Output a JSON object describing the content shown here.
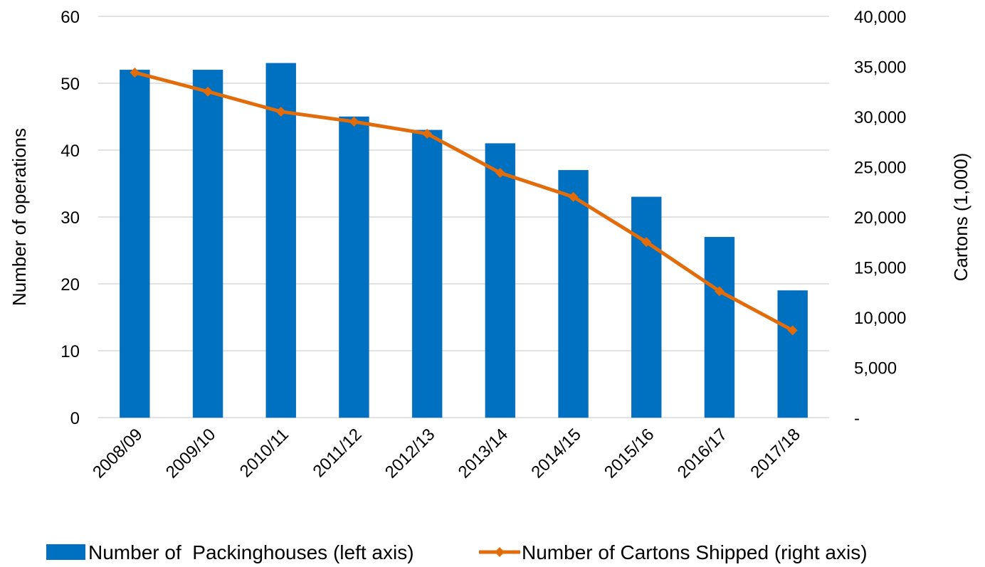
{
  "chart_data": {
    "type": "bar",
    "categories": [
      "2008/09",
      "2009/10",
      "2010/11",
      "2011/12",
      "2012/13",
      "2013/14",
      "2014/15",
      "2015/16",
      "2016/17",
      "2017/18"
    ],
    "series": [
      {
        "name": "Number of  Packinghouses (left axis)",
        "type": "bar",
        "axis": "left",
        "color": "#0070c0",
        "values": [
          52,
          52,
          53,
          45,
          43,
          41,
          37,
          33,
          27,
          19
        ]
      },
      {
        "name": "Number of Cartons Shipped (right axis)",
        "type": "line",
        "axis": "right",
        "color": "#e36c0a",
        "marker": "diamond",
        "values": [
          34400,
          32500,
          30500,
          29500,
          28300,
          24400,
          22000,
          17500,
          12600,
          8700
        ]
      }
    ],
    "ylabel": "Number of operations",
    "ylabel_right": "Cartons (1,000)",
    "ylim": [
      0,
      60
    ],
    "ylim_right": [
      0,
      40000
    ],
    "yticks": [
      "0",
      "10",
      "20",
      "30",
      "40",
      "50",
      "60"
    ],
    "yticks_right": [
      "-",
      "5,000",
      "10,000",
      "15,000",
      "20,000",
      "25,000",
      "30,000",
      "35,000",
      "40,000"
    ],
    "grid": true,
    "legend_position": "bottom"
  }
}
